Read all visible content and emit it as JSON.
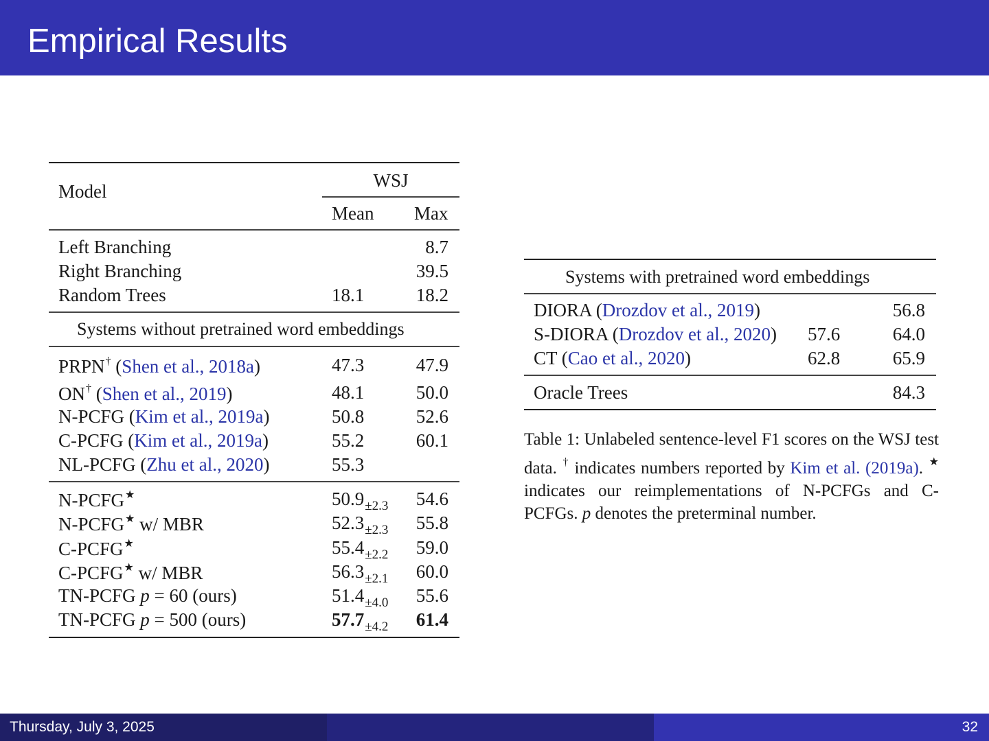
{
  "slide": {
    "title": "Empirical Results",
    "date": "Thursday, July 3, 2025",
    "page_number": "32"
  },
  "table1": {
    "header": {
      "model": "Model",
      "group": "WSJ",
      "mean": "Mean",
      "max": "Max"
    },
    "baselines": [
      {
        "model": "Left Branching",
        "mean": "",
        "max": "8.7"
      },
      {
        "model": "Right Branching",
        "mean": "",
        "max": "39.5"
      },
      {
        "model": "Random Trees",
        "mean": "18.1",
        "max": "18.2"
      }
    ],
    "section_no_emb": "Systems without pretrained word embeddings",
    "no_emb_rows": [
      {
        "model": "PRPN",
        "mark": "†",
        "open": " (",
        "cite": "Shen et al., 2018a",
        "close": ")",
        "mean": "47.3",
        "max": "47.9"
      },
      {
        "model": "ON",
        "mark": "†",
        "open": " (",
        "cite": "Shen et al., 2019",
        "close": ")",
        "mean": "48.1",
        "max": "50.0"
      },
      {
        "model": "N-PCFG",
        "mark": "",
        "open": " (",
        "cite": "Kim et al., 2019a",
        "close": ")",
        "mean": "50.8",
        "max": "52.6"
      },
      {
        "model": "C-PCFG",
        "mark": "",
        "open": " (",
        "cite": "Kim et al., 2019a",
        "close": ")",
        "mean": "55.2",
        "max": "60.1"
      },
      {
        "model": "NL-PCFG",
        "mark": "",
        "open": " (",
        "cite": "Zhu et al., 2020",
        "close": ")",
        "mean": "55.3",
        "max": ""
      }
    ],
    "ours_rows": [
      {
        "model": "N-PCFG",
        "mark": "★",
        "suffix": "",
        "mean": "50.9",
        "sd": "±2.3",
        "max": "54.6"
      },
      {
        "model": "N-PCFG",
        "mark": "★",
        "suffix": " w/ MBR",
        "mean": "52.3",
        "sd": "±2.3",
        "max": "55.8"
      },
      {
        "model": "C-PCFG",
        "mark": "★",
        "suffix": "",
        "mean": "55.4",
        "sd": "±2.2",
        "max": "59.0"
      },
      {
        "model": "C-PCFG",
        "mark": "★",
        "suffix": " w/ MBR",
        "mean": "56.3",
        "sd": "±2.1",
        "max": "60.0"
      },
      {
        "model": "TN-PCFG ",
        "mark": "",
        "var": "p",
        "suffix": " = 60 (ours)",
        "mean": "51.4",
        "sd": "±4.0",
        "max": "55.6"
      },
      {
        "model": "TN-PCFG ",
        "mark": "",
        "var": "p",
        "suffix": " = 500 (ours)",
        "mean": "57.7",
        "sd": "±4.2",
        "max": "61.4"
      }
    ]
  },
  "table2": {
    "header": "Systems with pretrained word embeddings",
    "rows": [
      {
        "model": "DIORA",
        "open": " (",
        "cite": "Drozdov et al., 2019",
        "close": ")",
        "mean": "",
        "max": "56.8"
      },
      {
        "model": "S-DIORA",
        "open": " (",
        "cite": "Drozdov et al., 2020",
        "close": ")",
        "mean": "57.6",
        "max": "64.0"
      },
      {
        "model": "CT",
        "open": " (",
        "cite": "Cao et al., 2020",
        "close": ")",
        "mean": "62.8",
        "max": "65.9"
      }
    ],
    "oracle": {
      "model": "Oracle Trees",
      "max": "84.3"
    }
  },
  "caption": {
    "label": "Table 1:",
    "text1": "  Unlabeled sentence-level F1 scores on the WSJ test data. ",
    "mark1": "†",
    "text2": " indicates numbers reported by ",
    "cite": "Kim et al. (2019a)",
    "text3": ". ",
    "mark2": "★",
    "text4": " indicates our reimplementations of N-PCFGs and C-PCFGs. ",
    "var": "p",
    "text5": " denotes the preterminal number."
  }
}
